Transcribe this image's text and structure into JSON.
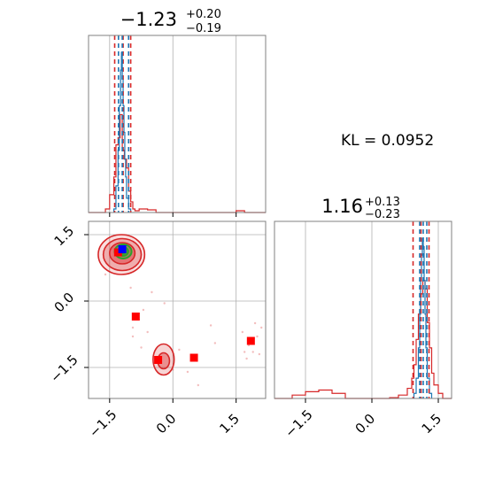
{
  "colors": {
    "red": "#d62728",
    "blue": "#1f77b4",
    "green": "#2ca02c",
    "marker_red": "#ff0000",
    "marker_blue": "#0000ff",
    "grid": "#b0b0b0",
    "frame": "#808080"
  },
  "kl_text": "KL = 0.0952",
  "chart_data": {
    "type": "corner",
    "params": [
      {
        "title_value": "−1.23",
        "title_upper": "+0.20",
        "title_lower": "−0.19",
        "range": [
          -2.0,
          2.2
        ],
        "ticks": [
          -1.5,
          0.0,
          1.5
        ],
        "tick_labels": [
          "−1.5",
          "0.0",
          "1.5"
        ],
        "quantile_lines_red": [
          -1.38,
          -1.0
        ],
        "median_line_red": -1.18,
        "quantile_lines_blue": [
          -1.29,
          -1.05
        ],
        "median_line_blue": -1.2
      },
      {
        "title_value": "1.16",
        "title_upper": "+0.13",
        "title_lower": "−0.23",
        "range": [
          -2.2,
          1.8
        ],
        "ticks": [
          -1.5,
          0.0,
          1.5
        ],
        "tick_labels": [
          "−1.5",
          "0.0",
          "1.5"
        ],
        "quantile_lines_red": [
          0.93,
          1.29
        ],
        "median_line_red": 1.11,
        "quantile_lines_blue": [
          1.08,
          1.24
        ],
        "median_line_blue": 1.16
      }
    ],
    "hist1_red": {
      "bins": [
        -2.0,
        -1.8,
        -1.6,
        -1.5,
        -1.4,
        -1.35,
        -1.3,
        -1.25,
        -1.2,
        -1.15,
        -1.1,
        -1.05,
        -1.0,
        -0.95,
        -0.9,
        -0.8,
        -0.6,
        -0.4,
        1.5,
        1.7,
        2.2
      ],
      "values": [
        0,
        0,
        0.02,
        0.1,
        0.2,
        0.38,
        0.42,
        0.55,
        0.35,
        0.3,
        0.25,
        0.12,
        0.06,
        0.02,
        0.01,
        0.02,
        0.015,
        0,
        0.01,
        0
      ]
    },
    "hist1_blue": {
      "bins": [
        -1.4,
        -1.35,
        -1.3,
        -1.27,
        -1.24,
        -1.22,
        -1.2,
        -1.18,
        -1.16,
        -1.14,
        -1.12,
        -1.1,
        -1.05,
        -1.0
      ],
      "values": [
        0.02,
        0.15,
        0.35,
        0.6,
        0.8,
        0.9,
        0.75,
        0.6,
        0.45,
        0.3,
        0.2,
        0.08,
        0.02
      ]
    },
    "hist2_red": {
      "bins": [
        -2.2,
        -1.8,
        -1.5,
        -1.2,
        -0.9,
        -0.6,
        0.4,
        0.6,
        0.8,
        0.9,
        0.95,
        1.0,
        1.05,
        1.1,
        1.15,
        1.2,
        1.25,
        1.3,
        1.35,
        1.4,
        1.5,
        1.6,
        1.8
      ],
      "values": [
        0,
        0.02,
        0.04,
        0.05,
        0.03,
        0,
        0.005,
        0.02,
        0.06,
        0.12,
        0.2,
        0.35,
        0.5,
        0.62,
        0.7,
        0.65,
        0.45,
        0.3,
        0.15,
        0.08,
        0.03,
        0
      ]
    },
    "hist2_blue": {
      "bins": [
        0.95,
        1.0,
        1.05,
        1.08,
        1.1,
        1.12,
        1.14,
        1.16,
        1.18,
        1.2,
        1.22,
        1.25,
        1.3,
        1.35
      ],
      "values": [
        0.03,
        0.12,
        0.3,
        0.5,
        0.7,
        0.85,
        0.95,
        0.9,
        0.7,
        0.5,
        0.3,
        0.12,
        0.03
      ]
    },
    "red_markers": [
      {
        "x": -1.3,
        "y": 1.1
      },
      {
        "x": -0.88,
        "y": -0.35
      },
      {
        "x": -0.35,
        "y": -1.33
      },
      {
        "x": 0.5,
        "y": -1.28
      },
      {
        "x": 1.85,
        "y": -0.9
      }
    ],
    "blue_marker": {
      "x": -1.2,
      "y": 1.17
    },
    "red_contours_main": [
      {
        "cx": -1.22,
        "cy": 1.05,
        "rx": 0.55,
        "ry": 0.45
      },
      {
        "cx": -1.2,
        "cy": 1.05,
        "rx": 0.45,
        "ry": 0.36
      },
      {
        "cx": -1.2,
        "cy": 1.08,
        "rx": 0.3,
        "ry": 0.24
      }
    ],
    "red_contours_secondary": [
      {
        "cx": -0.22,
        "cy": -1.32,
        "rx": 0.25,
        "ry": 0.35
      },
      {
        "cx": -0.22,
        "cy": -1.35,
        "rx": 0.14,
        "ry": 0.18
      }
    ],
    "green_contours": [
      {
        "cx": -1.18,
        "cy": 1.12,
        "rx": 0.2,
        "ry": 0.16
      },
      {
        "cx": -1.18,
        "cy": 1.12,
        "rx": 0.12,
        "ry": 0.1
      },
      {
        "cx": -1.18,
        "cy": 1.12,
        "rx": 0.06,
        "ry": 0.05
      }
    ],
    "scatter_points": [
      {
        "x": -0.5,
        "y": 0.2
      },
      {
        "x": -0.7,
        "y": -0.2
      },
      {
        "x": -0.95,
        "y": -0.6
      },
      {
        "x": -0.95,
        "y": -0.8
      },
      {
        "x": -0.6,
        "y": -0.7
      },
      {
        "x": 0.15,
        "y": -1.1
      },
      {
        "x": 0.35,
        "y": -1.6
      },
      {
        "x": 0.9,
        "y": -0.55
      },
      {
        "x": 1.0,
        "y": -0.95
      },
      {
        "x": 1.65,
        "y": -0.7
      },
      {
        "x": 1.8,
        "y": -1.0
      },
      {
        "x": 1.9,
        "y": -1.15
      },
      {
        "x": 2.0,
        "y": -0.8
      },
      {
        "x": 2.05,
        "y": -1.2
      },
      {
        "x": 1.7,
        "y": -1.15
      },
      {
        "x": 2.1,
        "y": -0.6
      },
      {
        "x": 0.6,
        "y": -1.9
      },
      {
        "x": -1.0,
        "y": 0.3
      },
      {
        "x": -1.6,
        "y": 0.6
      },
      {
        "x": -0.2,
        "y": -0.05
      },
      {
        "x": 1.95,
        "y": -0.5
      },
      {
        "x": 0.0,
        "y": -1.55
      },
      {
        "x": 1.75,
        "y": -1.3
      },
      {
        "x": -0.75,
        "y": -1.05
      }
    ]
  }
}
